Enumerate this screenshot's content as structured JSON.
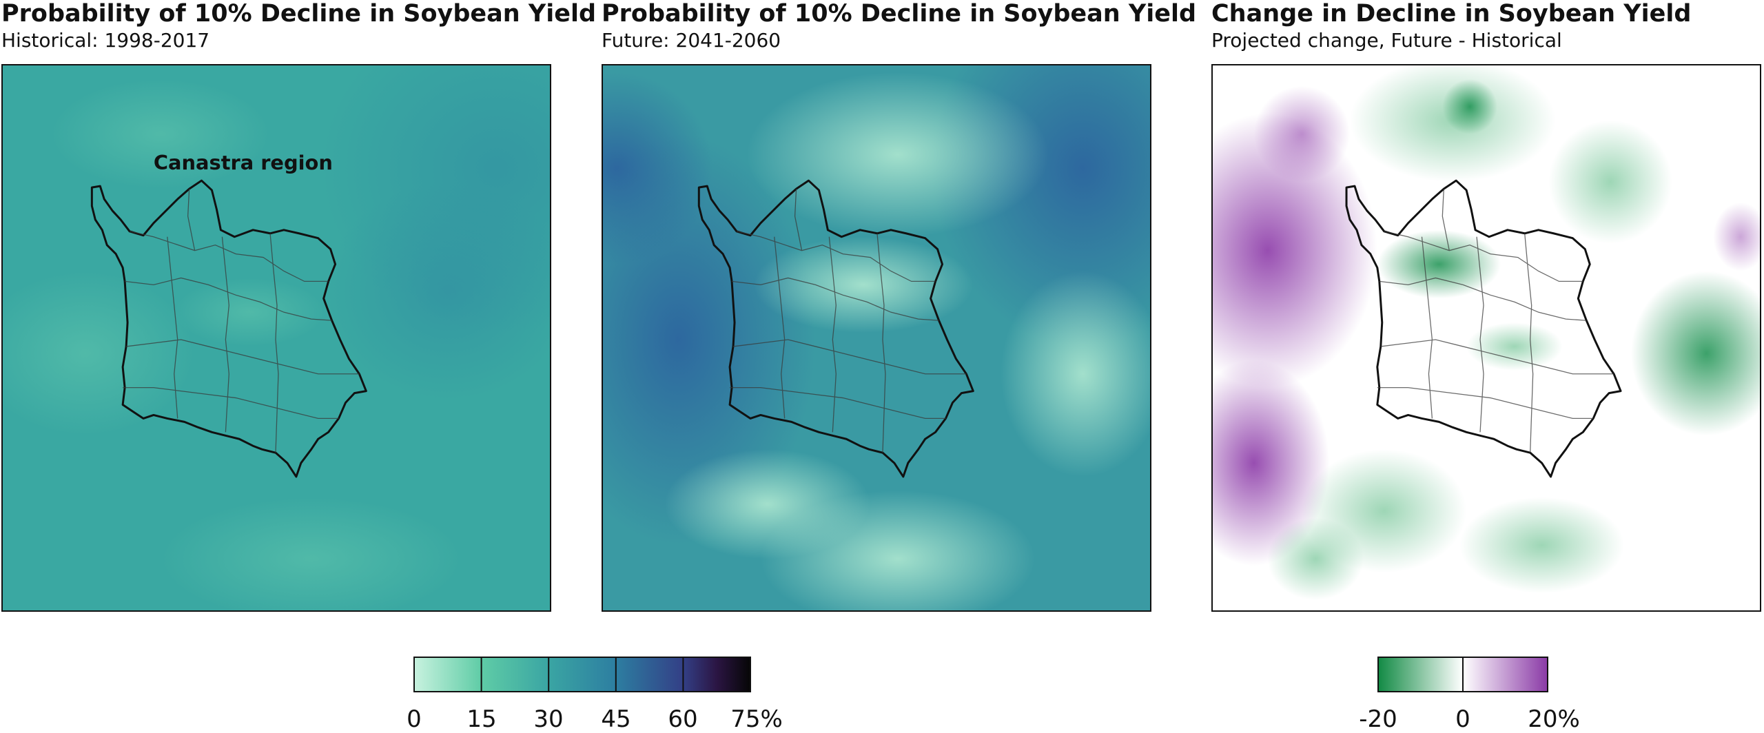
{
  "panels": [
    {
      "title": "Probability of 10% Decline in Soybean Yield",
      "subtitle": "Historical: 1998-2017",
      "region_label": "Canastra region"
    },
    {
      "title": "Probability of 10% Decline in Soybean Yield",
      "subtitle": "Future: 2041-2060"
    },
    {
      "title": "Change in Decline in Soybean Yield",
      "subtitle": "Projected change, Future - Historical"
    }
  ],
  "colorbars": {
    "probability": {
      "ticks": [
        "0",
        "15",
        "30",
        "45",
        "60",
        "75%"
      ],
      "colors": [
        "#c8f2df",
        "#5fcca6",
        "#3aa5a3",
        "#2d7ea1",
        "#333f86",
        "#2b1543",
        "#060606"
      ]
    },
    "change": {
      "ticks": [
        "-20",
        "0",
        "20%"
      ],
      "colors": [
        "#118a44",
        "#ffffff",
        "#8a3aa6"
      ]
    }
  },
  "map_colors": {
    "historical_base": "#3aa8a2",
    "future_base": "#3a9aa3",
    "future_dark": "#2e5f9c",
    "future_light": "#9ee3c2",
    "change_green": "#1a9150",
    "change_purple": "#8c3aa8"
  }
}
